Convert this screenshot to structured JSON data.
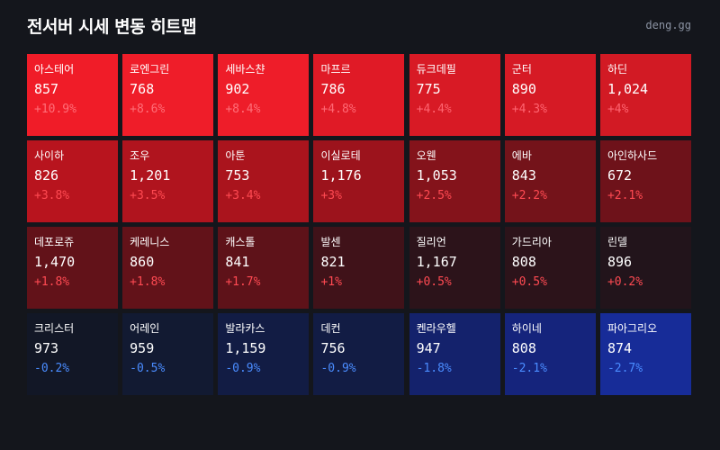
{
  "header": {
    "title": "전서버 시세 변동 히트맵",
    "source": "deng.gg"
  },
  "colors": {
    "background": "#14161c",
    "positive_text": "#ff4a4a",
    "negative_text": "#4a8cff",
    "positive_text_on_bright": "#ff7a7a"
  },
  "tiles": [
    {
      "name": "아스테어",
      "price": "857",
      "change": "+10.9%",
      "change_value": 10.9,
      "bg": "#f01c28",
      "change_color": "#ff6e78"
    },
    {
      "name": "로엔그린",
      "price": "768",
      "change": "+8.6%",
      "change_value": 8.6,
      "bg": "#ef1d29",
      "change_color": "#ff6e78"
    },
    {
      "name": "세바스챤",
      "price": "902",
      "change": "+8.4%",
      "change_value": 8.4,
      "bg": "#ee1d29",
      "change_color": "#ff6e78"
    },
    {
      "name": "마프르",
      "price": "786",
      "change": "+4.8%",
      "change_value": 4.8,
      "bg": "#e01a26",
      "change_color": "#ff6874"
    },
    {
      "name": "듀크데필",
      "price": "775",
      "change": "+4.4%",
      "change_value": 4.4,
      "bg": "#d81a25",
      "change_color": "#ff6470"
    },
    {
      "name": "군터",
      "price": "890",
      "change": "+4.3%",
      "change_value": 4.3,
      "bg": "#d61a25",
      "change_color": "#ff6470"
    },
    {
      "name": "하딘",
      "price": "1,024",
      "change": "+4%",
      "change_value": 4,
      "bg": "#d21a24",
      "change_color": "#ff6470"
    },
    {
      "name": "사이하",
      "price": "826",
      "change": "+3.8%",
      "change_value": 3.8,
      "bg": "#b8141e",
      "change_color": "#ff4a52"
    },
    {
      "name": "조우",
      "price": "1,201",
      "change": "+3.5%",
      "change_value": 3.5,
      "bg": "#b0141e",
      "change_color": "#ff4a52"
    },
    {
      "name": "아툰",
      "price": "753",
      "change": "+3.4%",
      "change_value": 3.4,
      "bg": "#aa141d",
      "change_color": "#ff4a52"
    },
    {
      "name": "이실로테",
      "price": "1,176",
      "change": "+3%",
      "change_value": 3,
      "bg": "#9c131c",
      "change_color": "#ff4a52"
    },
    {
      "name": "오웬",
      "price": "1,053",
      "change": "+2.5%",
      "change_value": 2.5,
      "bg": "#84131b",
      "change_color": "#ff4a52"
    },
    {
      "name": "에바",
      "price": "843",
      "change": "+2.2%",
      "change_value": 2.2,
      "bg": "#74131a",
      "change_color": "#ff4a52"
    },
    {
      "name": "아인하사드",
      "price": "672",
      "change": "+2.1%",
      "change_value": 2.1,
      "bg": "#6e121a",
      "change_color": "#ff4a52"
    },
    {
      "name": "데포로쥬",
      "price": "1,470",
      "change": "+1.8%",
      "change_value": 1.8,
      "bg": "#621219",
      "change_color": "#ff4a52"
    },
    {
      "name": "케레니스",
      "price": "860",
      "change": "+1.8%",
      "change_value": 1.8,
      "bg": "#621219",
      "change_color": "#ff4a52"
    },
    {
      "name": "캐스톨",
      "price": "841",
      "change": "+1.7%",
      "change_value": 1.7,
      "bg": "#5e1219",
      "change_color": "#ff4a52"
    },
    {
      "name": "발센",
      "price": "821",
      "change": "+1%",
      "change_value": 1,
      "bg": "#401219",
      "change_color": "#ff4a52"
    },
    {
      "name": "질리언",
      "price": "1,167",
      "change": "+0.5%",
      "change_value": 0.5,
      "bg": "#2c131a",
      "change_color": "#ff4a52"
    },
    {
      "name": "가드리아",
      "price": "808",
      "change": "+0.5%",
      "change_value": 0.5,
      "bg": "#2c131a",
      "change_color": "#ff4a52"
    },
    {
      "name": "린델",
      "price": "896",
      "change": "+0.2%",
      "change_value": 0.2,
      "bg": "#22141b",
      "change_color": "#ff4a52"
    },
    {
      "name": "크리스터",
      "price": "973",
      "change": "-0.2%",
      "change_value": -0.2,
      "bg": "#121726",
      "change_color": "#4a8cff"
    },
    {
      "name": "어레인",
      "price": "959",
      "change": "-0.5%",
      "change_value": -0.5,
      "bg": "#121a32",
      "change_color": "#4a8cff"
    },
    {
      "name": "발라카스",
      "price": "1,159",
      "change": "-0.9%",
      "change_value": -0.9,
      "bg": "#121c44",
      "change_color": "#4a8cff"
    },
    {
      "name": "데컨",
      "price": "756",
      "change": "-0.9%",
      "change_value": -0.9,
      "bg": "#121c44",
      "change_color": "#4a8cff"
    },
    {
      "name": "켄라우헬",
      "price": "947",
      "change": "-1.8%",
      "change_value": -1.8,
      "bg": "#14226c",
      "change_color": "#4a8cff"
    },
    {
      "name": "하이네",
      "price": "808",
      "change": "-2.1%",
      "change_value": -2.1,
      "bg": "#15247c",
      "change_color": "#4a8cff"
    },
    {
      "name": "파아그리오",
      "price": "874",
      "change": "-2.7%",
      "change_value": -2.7,
      "bg": "#172c98",
      "change_color": "#4a8cff"
    }
  ]
}
